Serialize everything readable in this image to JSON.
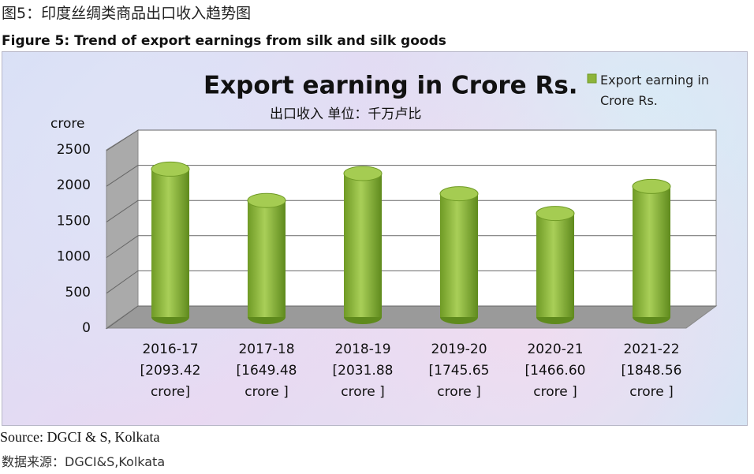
{
  "header": {
    "title_cn": "图5：印度丝绸类商品出口收入趋势图",
    "title_en": "Figure 5: Trend of export earnings from silk and silk goods"
  },
  "chart_data": {
    "type": "bar",
    "title": "Export earning in Crore Rs.",
    "subtitle": "出口收入  单位：千万卢比",
    "y_label": "crore",
    "categories": [
      "2016-17",
      "2017-18",
      "2018-19",
      "2019-20",
      "2020-21",
      "2021-22"
    ],
    "series": [
      {
        "name": "Export earning in Crore Rs.",
        "color": "#8db43a",
        "values": [
          2093.42,
          1649.48,
          2031.88,
          1745.65,
          1466.6,
          1848.56
        ],
        "value_labels": [
          "[2093.42 crore]",
          "[1649.48 crore ]",
          "[2031.88 crore ]",
          "[1745.65 crore ]",
          "[1466.60 crore ]",
          "[1848.56 crore ]"
        ]
      }
    ],
    "ylim": [
      0,
      2500
    ],
    "yticks": [
      0,
      500,
      1000,
      1500,
      2000,
      2500
    ],
    "grid": true,
    "legend": "top-right"
  },
  "footer": {
    "source_en": "Source: DGCI & S, Kolkata",
    "source_cn": "数据来源：DGCI&S,Kolkata"
  }
}
